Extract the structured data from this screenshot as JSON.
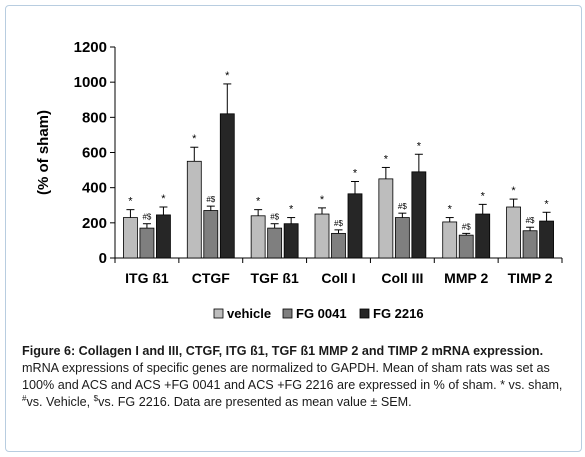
{
  "chart_data": {
    "type": "bar",
    "ylabel": "(% of sham)",
    "ylim": [
      0,
      1200
    ],
    "yticks": [
      0,
      200,
      400,
      600,
      800,
      1000,
      1200
    ],
    "categories": [
      "ITG ß1",
      "CTGF",
      "TGF ß1",
      "Coll I",
      "Coll III",
      "MMP 2",
      "TIMP 2"
    ],
    "legend_position": "bottom",
    "grid": false,
    "series": [
      {
        "name": "vehicle",
        "color": "#bdbdbd",
        "values": [
          230,
          550,
          240,
          250,
          450,
          205,
          290
        ],
        "errors": [
          45,
          80,
          35,
          35,
          65,
          25,
          45
        ],
        "markers": [
          "*",
          "*",
          "*",
          "*",
          "*",
          "*",
          "*"
        ]
      },
      {
        "name": "FG 0041",
        "color": "#7f7f7f",
        "values": [
          170,
          270,
          170,
          140,
          230,
          130,
          155
        ],
        "errors": [
          25,
          25,
          25,
          20,
          25,
          10,
          20
        ],
        "markers": [
          "#$",
          "#$",
          "#$",
          "#$",
          "#$",
          "#$",
          "#$"
        ]
      },
      {
        "name": "FG 2216",
        "color": "#262626",
        "values": [
          245,
          820,
          195,
          365,
          490,
          250,
          210
        ],
        "errors": [
          45,
          170,
          35,
          70,
          100,
          55,
          50
        ],
        "markers": [
          "*",
          "*",
          "*",
          "*",
          "*",
          "*",
          "*"
        ]
      }
    ]
  },
  "caption": {
    "bold": "Figure 6: Collagen I and III, CTGF, ITG ß1, TGF ß1 MMP 2 and TIMP 2 mRNA expression.",
    "t1": " mRNA expressions of specific genes are normalized to GAPDH. Mean of sham rats was set as 100% and ACS and ACS +FG 0041 and ACS +FG 2216 are expressed in % of sham.  * vs. sham, ",
    "sup1": "#",
    "t2": "vs. Vehicle, ",
    "sup2": "$",
    "t3": "vs. FG 2216. Data are presented as mean value ± SEM."
  }
}
